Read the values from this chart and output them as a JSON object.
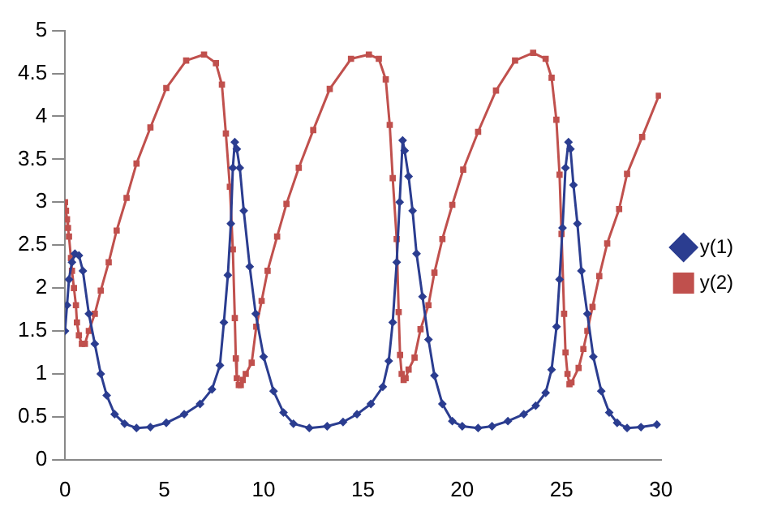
{
  "chart_data": {
    "type": "line",
    "xlim": [
      0,
      30
    ],
    "xticks": [
      0,
      5,
      10,
      15,
      20,
      25,
      30
    ],
    "ylim": [
      0,
      5
    ],
    "yticks": [
      0,
      0.5,
      1,
      1.5,
      2,
      2.5,
      3,
      3.5,
      4,
      4.5,
      5
    ],
    "grid": false,
    "legend": "right",
    "line_style": "solid",
    "series": [
      {
        "name": "y(1)",
        "color": "#2b3d90",
        "marker": "diamond",
        "x": [
          0,
          0.1,
          0.2,
          0.35,
          0.5,
          0.7,
          0.9,
          1.2,
          1.5,
          1.8,
          2.1,
          2.5,
          3.0,
          3.6,
          4.3,
          5.1,
          6.0,
          6.8,
          7.4,
          7.8,
          8.0,
          8.2,
          8.35,
          8.45,
          8.55,
          8.65,
          8.8,
          9.0,
          9.3,
          9.6,
          10.0,
          10.5,
          11.0,
          11.5,
          12.3,
          13.2,
          14.0,
          14.7,
          15.4,
          16.0,
          16.3,
          16.5,
          16.7,
          16.85,
          17.0,
          17.1,
          17.3,
          17.5,
          17.7,
          18.0,
          18.3,
          18.6,
          19.0,
          19.5,
          20.0,
          20.8,
          21.5,
          22.3,
          23.1,
          23.7,
          24.2,
          24.5,
          24.75,
          24.9,
          25.05,
          25.2,
          25.35,
          25.45,
          25.6,
          25.8,
          26.0,
          26.3,
          26.6,
          27.0,
          27.4,
          27.8,
          28.3,
          29.0,
          29.8
        ],
        "values": [
          1.5,
          1.8,
          2.1,
          2.3,
          2.4,
          2.38,
          2.2,
          1.7,
          1.35,
          1.0,
          0.75,
          0.53,
          0.42,
          0.37,
          0.38,
          0.43,
          0.53,
          0.65,
          0.82,
          1.1,
          1.6,
          2.15,
          2.75,
          3.4,
          3.7,
          3.62,
          3.4,
          2.9,
          2.25,
          1.7,
          1.2,
          0.8,
          0.55,
          0.42,
          0.37,
          0.39,
          0.44,
          0.53,
          0.65,
          0.85,
          1.15,
          1.6,
          2.3,
          3.0,
          3.72,
          3.6,
          3.3,
          2.9,
          2.4,
          1.9,
          1.4,
          0.98,
          0.65,
          0.45,
          0.39,
          0.37,
          0.39,
          0.45,
          0.53,
          0.63,
          0.78,
          1.05,
          1.55,
          2.1,
          2.7,
          3.4,
          3.7,
          3.62,
          3.2,
          2.75,
          2.2,
          1.7,
          1.2,
          0.8,
          0.55,
          0.43,
          0.37,
          0.38,
          0.41
        ]
      },
      {
        "name": "y(2)",
        "color": "#c0504d",
        "marker": "square",
        "x": [
          0,
          0.05,
          0.1,
          0.15,
          0.2,
          0.3,
          0.35,
          0.45,
          0.55,
          0.6,
          0.7,
          0.85,
          1.0,
          1.2,
          1.5,
          1.8,
          2.2,
          2.6,
          3.1,
          3.6,
          4.3,
          5.1,
          6.1,
          7.0,
          7.6,
          7.9,
          8.1,
          8.3,
          8.45,
          8.55,
          8.6,
          8.65,
          8.75,
          8.85,
          8.95,
          9.1,
          9.4,
          9.63,
          9.9,
          10.2,
          10.68,
          11.15,
          11.77,
          12.5,
          13.33,
          14.4,
          15.3,
          15.8,
          16.15,
          16.35,
          16.5,
          16.7,
          16.8,
          16.87,
          16.95,
          17.05,
          17.15,
          17.3,
          17.6,
          17.9,
          18.3,
          18.6,
          19.0,
          19.5,
          20.05,
          20.8,
          21.7,
          22.66,
          23.57,
          24.2,
          24.5,
          24.74,
          24.9,
          25.0,
          25.13,
          25.2,
          25.3,
          25.4,
          25.5,
          25.86,
          26.1,
          26.3,
          26.56,
          26.9,
          27.3,
          27.9,
          28.3,
          29.06,
          29.9
        ],
        "values": [
          3.0,
          2.9,
          2.8,
          2.7,
          2.6,
          2.35,
          2.2,
          2.0,
          1.8,
          1.6,
          1.45,
          1.35,
          1.35,
          1.5,
          1.7,
          1.97,
          2.3,
          2.67,
          3.05,
          3.45,
          3.87,
          4.33,
          4.65,
          4.72,
          4.62,
          4.37,
          3.8,
          3.18,
          2.45,
          1.65,
          1.18,
          0.95,
          0.87,
          0.87,
          0.93,
          1.0,
          1.13,
          1.55,
          1.85,
          2.2,
          2.6,
          2.98,
          3.4,
          3.84,
          4.32,
          4.67,
          4.72,
          4.67,
          4.43,
          3.9,
          3.28,
          2.57,
          1.72,
          1.22,
          1.0,
          0.93,
          0.95,
          1.05,
          1.19,
          1.52,
          1.8,
          2.18,
          2.57,
          2.97,
          3.38,
          3.82,
          4.3,
          4.65,
          4.74,
          4.67,
          4.45,
          3.96,
          3.32,
          2.63,
          1.7,
          1.25,
          1.0,
          0.88,
          0.9,
          1.07,
          1.29,
          1.5,
          1.78,
          2.14,
          2.52,
          2.92,
          3.33,
          3.76,
          4.24
        ]
      }
    ]
  }
}
